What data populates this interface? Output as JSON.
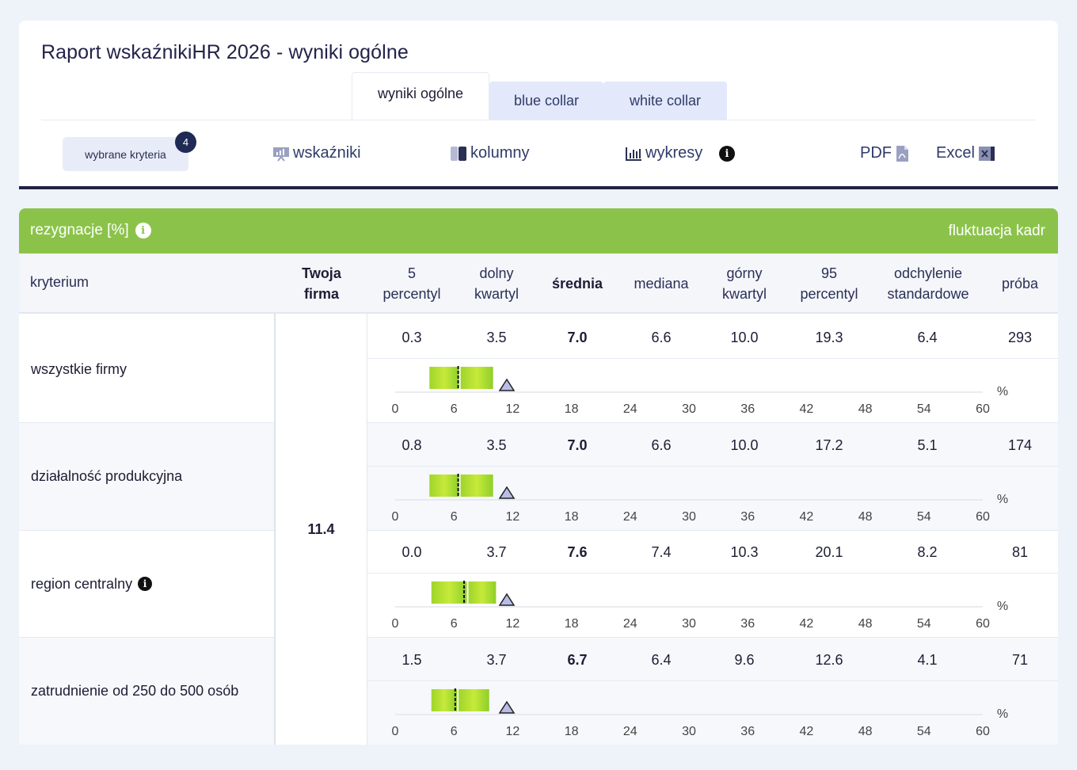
{
  "title": "Raport wskaźnikiHR 2026 - wyniki ogólne",
  "tabs": [
    "wyniki ogólne",
    "blue collar",
    "white collar"
  ],
  "toolbar": {
    "criteria_label": "wybrane kryteria",
    "criteria_count": "4",
    "indicators": "wskaźniki",
    "columns": "kolumny",
    "charts": "wykresy",
    "pdf": "PDF",
    "excel": "Excel"
  },
  "section": {
    "title": "rezygnacje [%]",
    "category": "fluktuacja kadr"
  },
  "columns": {
    "criterion": "kryterium",
    "firm": [
      "Twoja",
      "firma"
    ],
    "p5": [
      "5",
      "percentyl"
    ],
    "q1": [
      "dolny",
      "kwartyl"
    ],
    "mean": "średnia",
    "median": "mediana",
    "q3": [
      "górny",
      "kwartyl"
    ],
    "p95": [
      "95",
      "percentyl"
    ],
    "sd": [
      "odchylenie",
      "standardowe"
    ],
    "sample": "próba"
  },
  "firm_value": "11.4",
  "axis": {
    "ticks": [
      0,
      6,
      12,
      18,
      24,
      30,
      36,
      42,
      48,
      54,
      60
    ],
    "unit": "%"
  },
  "rows": [
    {
      "label": "wszystkie firmy",
      "info": false,
      "p5": "0.3",
      "q1": "3.5",
      "mean": "7.0",
      "median": "6.6",
      "q3": "10.0",
      "p95": "19.3",
      "sd": "6.4",
      "sample": "293"
    },
    {
      "label": "działalność produkcyjna",
      "info": false,
      "p5": "0.8",
      "q1": "3.5",
      "mean": "7.0",
      "median": "6.6",
      "q3": "10.0",
      "p95": "17.2",
      "sd": "5.1",
      "sample": "174"
    },
    {
      "label": "region centralny",
      "info": true,
      "p5": "0.0",
      "q1": "3.7",
      "mean": "7.6",
      "median": "7.4",
      "q3": "10.3",
      "p95": "20.1",
      "sd": "8.2",
      "sample": "81"
    },
    {
      "label": "zatrudnienie od 250 do 500 osób",
      "info": false,
      "p5": "1.5",
      "q1": "3.7",
      "mean": "6.7",
      "median": "6.4",
      "q3": "9.6",
      "p95": "12.6",
      "sd": "4.1",
      "sample": "71"
    }
  ],
  "colors": {
    "green": "#8bc34a",
    "navy": "#222244",
    "tab_inactive": "#e3e8fb"
  }
}
